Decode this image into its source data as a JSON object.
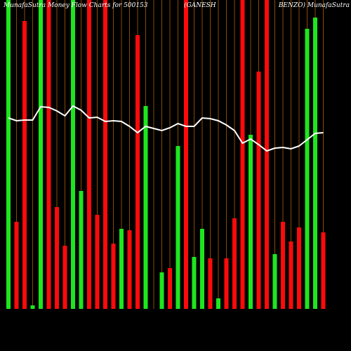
{
  "chart_data": {
    "type": "bar",
    "title_parts": [
      "MunafaSutra  Money Flow  Charts for 500153",
      "(GANESH",
      "BENZO) MunafaSutra"
    ],
    "ylim": [
      0,
      440
    ],
    "colors": {
      "up": "#1ee61e",
      "down": "#ff0a0a",
      "slot": "#8a4a00",
      "line": "#ffffff"
    },
    "bars": {
      "values": [
        440,
        124,
        410,
        5,
        440,
        440,
        145,
        90,
        440,
        168,
        440,
        134,
        440,
        93,
        114,
        112,
        390,
        289,
        0,
        52,
        58,
        232,
        440,
        74,
        114,
        72,
        15,
        72,
        129,
        440,
        248,
        338,
        440,
        78,
        124,
        96,
        116,
        399,
        415,
        109
      ],
      "direction": [
        "up",
        "down",
        "down",
        "up",
        "up",
        "down",
        "down",
        "down",
        "up",
        "up",
        "down",
        "down",
        "down",
        "down",
        "up",
        "down",
        "down",
        "up",
        "up",
        "up",
        "down",
        "up",
        "down",
        "up",
        "up",
        "down",
        "up",
        "down",
        "down",
        "down",
        "up",
        "down",
        "down",
        "up",
        "down",
        "down",
        "down",
        "up",
        "up",
        "down"
      ]
    },
    "line": {
      "values": [
        272,
        268,
        269,
        269,
        288,
        287,
        282,
        275,
        289,
        283,
        272,
        273,
        267,
        268,
        267,
        260,
        251,
        260,
        257,
        254,
        258,
        264,
        260,
        260,
        272,
        271,
        268,
        262,
        254,
        236,
        242,
        234,
        225,
        229,
        230,
        228,
        232,
        241,
        250,
        251
      ]
    }
  }
}
